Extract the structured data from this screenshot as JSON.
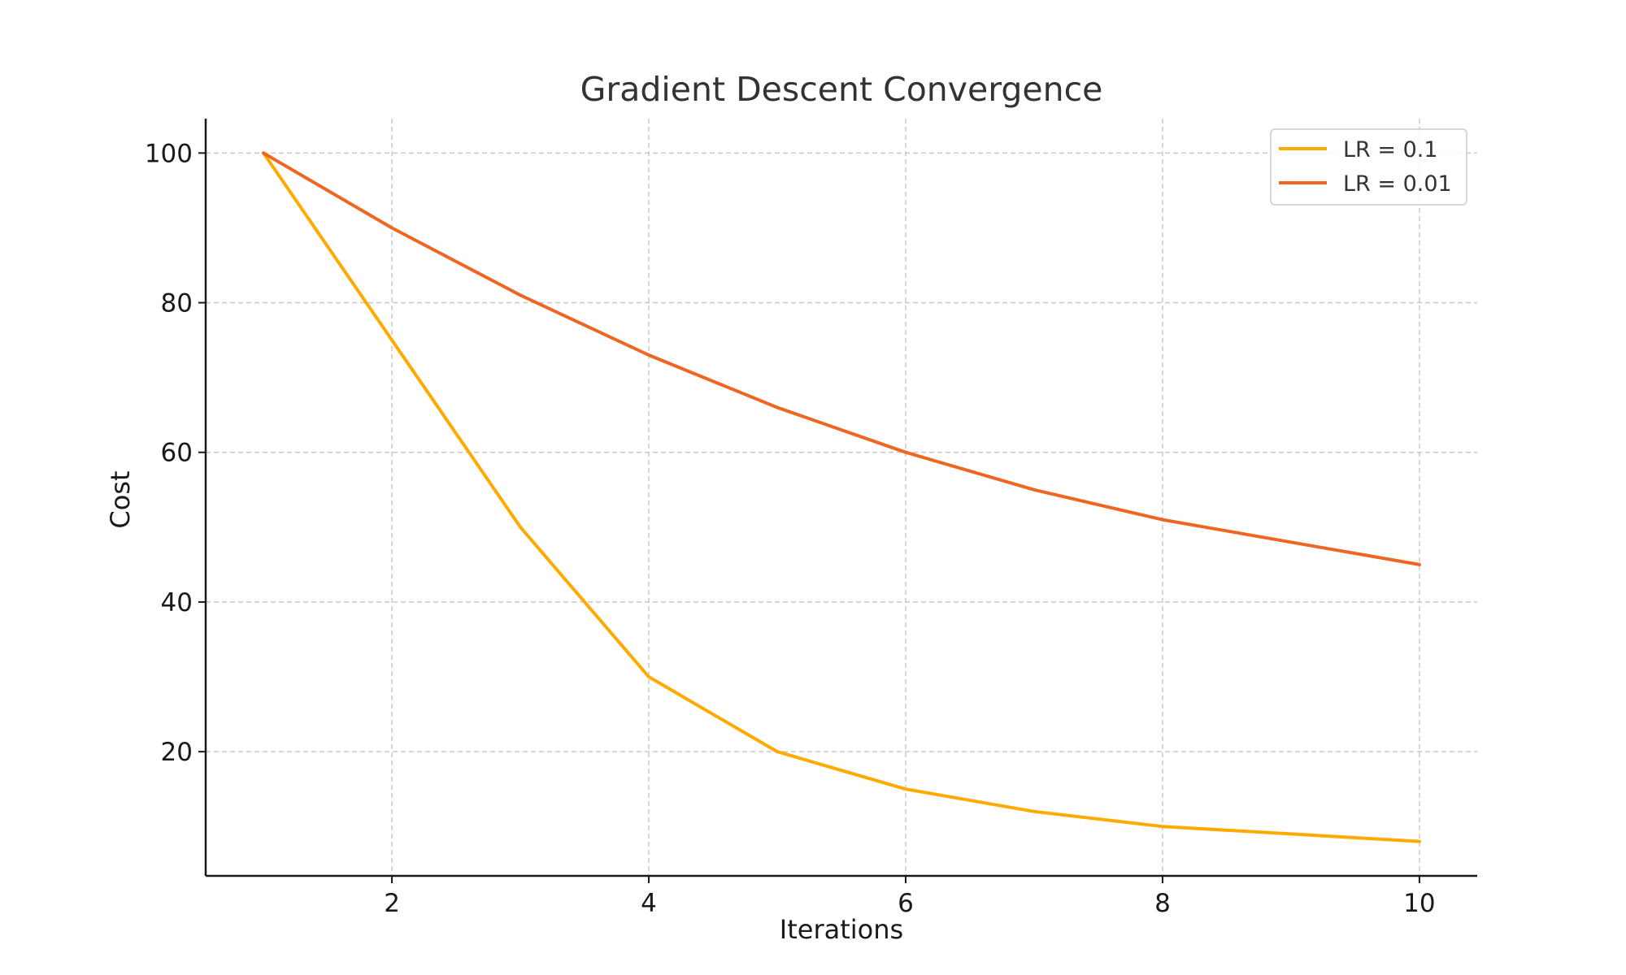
{
  "chart_data": {
    "type": "line",
    "title": "Gradient Descent Convergence",
    "xlabel": "Iterations",
    "ylabel": "Cost",
    "x": [
      1,
      2,
      3,
      4,
      5,
      6,
      7,
      8,
      9,
      10
    ],
    "xlim": [
      0.55,
      10.45
    ],
    "ylim": [
      3.4,
      104.6
    ],
    "xticks": [
      2,
      4,
      6,
      8,
      10
    ],
    "yticks": [
      20,
      40,
      60,
      80,
      100
    ],
    "grid": true,
    "legend_position": "top-right",
    "series": [
      {
        "name": "LR = 0.1",
        "color": "#FFAA00",
        "values": [
          100,
          75,
          50,
          30,
          20,
          15,
          12,
          10,
          9,
          8
        ]
      },
      {
        "name": "LR = 0.01",
        "color": "#EE6622",
        "values": [
          100,
          90,
          81,
          73,
          66,
          60,
          55,
          51,
          48,
          45
        ]
      }
    ]
  }
}
